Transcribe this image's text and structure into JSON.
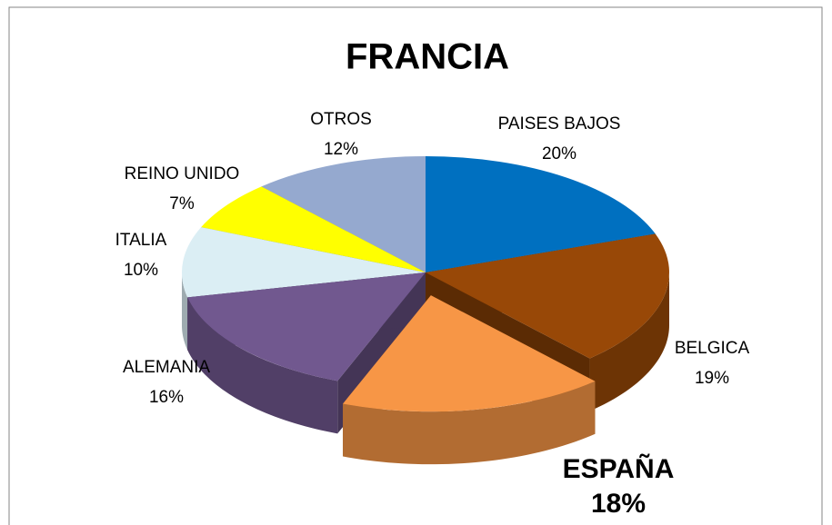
{
  "chart_data": {
    "type": "pie",
    "title": "FRANCIA",
    "categories": [
      "PAISES BAJOS",
      "BELGICA",
      "ESPAÑA",
      "ALEMANIA",
      "ITALIA",
      "REINO UNIDO",
      "OTROS"
    ],
    "values": [
      20,
      19,
      18,
      16,
      10,
      7,
      12
    ],
    "value_labels": [
      "20%",
      "19%",
      "18%",
      "16%",
      "10%",
      "7%",
      "12%"
    ],
    "colors": [
      "#0070c0",
      "#984807",
      "#f79646",
      "#71588f",
      "#dbeef4",
      "#ffff00",
      "#95a9cf"
    ],
    "exploded_category": "ESPAÑA"
  }
}
